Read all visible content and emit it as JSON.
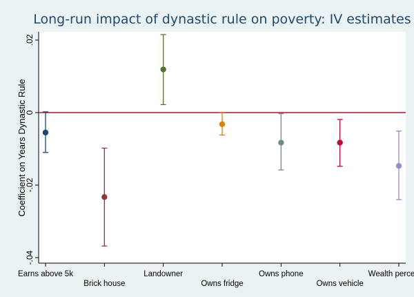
{
  "chart_data": {
    "type": "scatter",
    "title": "Long-run impact of dynastic rule on poverty: IV estimates",
    "xlabel": "",
    "ylabel": "Coefficient on Years Dynastic Rule",
    "ylim": [
      -0.04,
      0.022
    ],
    "yticks": [
      0.02,
      0,
      -0.02,
      -0.04
    ],
    "ytick_labels": [
      ".02",
      "0",
      "-.02",
      "-.04"
    ],
    "reference_line": 0,
    "reference_line_color": "#b5122e",
    "grid": false,
    "categories": [
      "Earns above 5k",
      "Brick house",
      "Landowner",
      "Owns fridge",
      "Owns phone",
      "Owns vehicle",
      "Wealth percentile"
    ],
    "series": [
      {
        "category": "Earns above 5k",
        "estimate": -0.0055,
        "ci_low": -0.011,
        "ci_high": 0.0002,
        "color": "#1a476f"
      },
      {
        "category": "Brick house",
        "estimate": -0.0233,
        "ci_low": -0.0368,
        "ci_high": -0.0098,
        "color": "#90353b"
      },
      {
        "category": "Landowner",
        "estimate": 0.0119,
        "ci_low": 0.0022,
        "ci_high": 0.0215,
        "color": "#55752f"
      },
      {
        "category": "Owns fridge",
        "estimate": -0.0032,
        "ci_low": -0.0062,
        "ci_high": 0.0001,
        "color": "#e37e00"
      },
      {
        "category": "Owns phone",
        "estimate": -0.0083,
        "ci_low": -0.0158,
        "ci_high": -0.0003,
        "color": "#6e8e84"
      },
      {
        "category": "Owns vehicle",
        "estimate": -0.0083,
        "ci_low": -0.0148,
        "ci_high": -0.0019,
        "color": "#c10534"
      },
      {
        "category": "Wealth percentile",
        "estimate": -0.0147,
        "ci_low": -0.024,
        "ci_high": -0.0051,
        "color": "#938dd2"
      }
    ]
  }
}
